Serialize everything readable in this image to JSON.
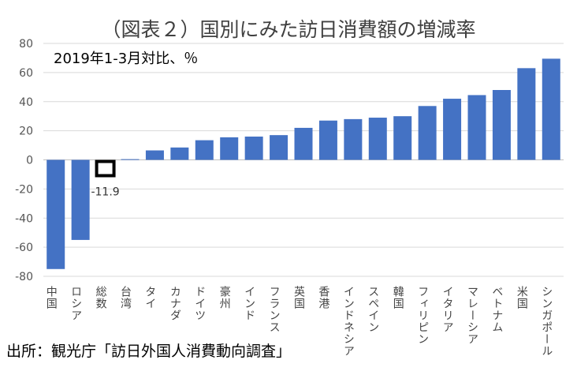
{
  "title": "（図表２）国別にみた訪日消費額の増減率",
  "subtitle": "2019年1-3月対比、％",
  "source": "出所：観光庁「訪日外国人消費動向調査」",
  "chart_data": {
    "type": "bar",
    "categories": [
      "中国",
      "ロシア",
      "総数",
      "台湾",
      "タイ",
      "カナダ",
      "ドイツ",
      "豪州",
      "インド",
      "フランス",
      "英国",
      "香港",
      "インドネシア",
      "スペイン",
      "韓国",
      "フィリピン",
      "イタリア",
      "マレーシア",
      "ベトナム",
      "米国",
      "シンガポール"
    ],
    "values": [
      -75,
      -55,
      -11.9,
      0.5,
      6.5,
      8.5,
      13.5,
      15.5,
      16,
      17,
      22,
      27,
      28,
      29,
      30,
      37,
      42,
      44.5,
      48,
      63,
      69.5
    ],
    "highlight_index": 2,
    "data_label": "-11.9",
    "ylim": [
      -80,
      80
    ],
    "yticks": [
      80,
      60,
      40,
      20,
      0,
      -20,
      -40,
      -60,
      -80
    ],
    "grid": true,
    "bar_color": "#4472c4"
  }
}
